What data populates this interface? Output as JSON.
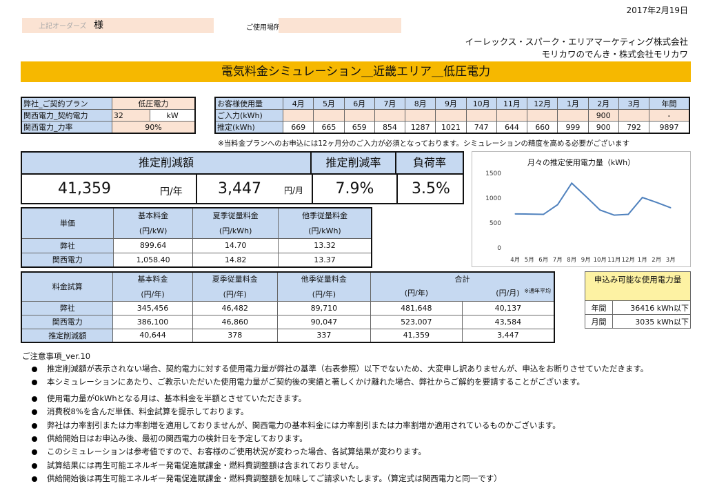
{
  "date": "2017年2月19日",
  "customer": {
    "name": "上記オーダーズ",
    "honorific": "様",
    "location_label": "ご使用場所",
    "location_value": ""
  },
  "company": {
    "line1": "イーレックス・スパーク・エリアマーケティング株式会社",
    "line2": "モリカワのでんき・株式会社モリカワ"
  },
  "title": "電気料金シミュレーション＿近畿エリア＿低圧電力",
  "plan": {
    "rows": [
      {
        "label": "弊社_ご契約プラン",
        "value": "低圧電力",
        "unit": ""
      },
      {
        "label": "関西電力_契約電力",
        "value": "32",
        "unit": "kW"
      },
      {
        "label": "関西電力_力率",
        "value": "90%",
        "unit": ""
      }
    ]
  },
  "usage": {
    "header_label": "お客様使用量",
    "months": [
      "4月",
      "5月",
      "6月",
      "7月",
      "8月",
      "9月",
      "10月",
      "11月",
      "12月",
      "1月",
      "2月",
      "3月",
      "年間"
    ],
    "input_label": "ご入力(kWh)",
    "input_values": [
      "",
      "",
      "",
      "",
      "",
      "",
      "",
      "",
      "",
      "",
      "900",
      "",
      "-"
    ],
    "est_label": "推定(kWh)",
    "est_values": [
      "669",
      "665",
      "659",
      "854",
      "1287",
      "1021",
      "747",
      "644",
      "660",
      "999",
      "900",
      "792",
      "9897"
    ],
    "note": "※当料金プランへのお申込には12ヶ月分のご入力が必須となっております。シミュレーションの精度を高める必要がございます"
  },
  "summary": {
    "reduction_label": "推定削減額",
    "yearly_value": "41,359",
    "yearly_unit": "円/年",
    "monthly_value": "3,447",
    "monthly_unit": "円/月",
    "rate_label": "推定削減率",
    "rate_value": "7.9%",
    "load_label": "負荷率",
    "load_value": "3.5%"
  },
  "unit_price": {
    "corner": "単価",
    "headers": [
      {
        "name": "基本料金",
        "unit": "(円/kW)"
      },
      {
        "name": "夏季従量料金",
        "unit": "(円/kWh)"
      },
      {
        "name": "他季従量料金",
        "unit": "(円/kWh)"
      }
    ],
    "rows": [
      {
        "label": "弊社",
        "values": [
          "899.64",
          "14.70",
          "13.32"
        ]
      },
      {
        "label": "関西電力",
        "values": [
          "1,058.40",
          "14.82",
          "13.37"
        ]
      }
    ]
  },
  "trial": {
    "corner": "料金試算",
    "headers": [
      {
        "name": "基本料金",
        "unit": "(円/年)"
      },
      {
        "name": "夏季従量料金",
        "unit": "(円/年)"
      },
      {
        "name": "他季従量料金",
        "unit": "(円/年)"
      }
    ],
    "total_label": "合計",
    "total_unit_year": "(円/年)",
    "total_unit_month": "(円/月)",
    "avg_note": "※通年平均",
    "rows": [
      {
        "label": "弊社",
        "values": [
          "345,456",
          "46,482",
          "89,710",
          "481,648",
          "40,137"
        ]
      },
      {
        "label": "関西電力",
        "values": [
          "386,100",
          "46,860",
          "90,047",
          "523,007",
          "43,584"
        ]
      },
      {
        "label": "推定削減額",
        "values": [
          "40,644",
          "378",
          "337",
          "41,359",
          "3,447"
        ]
      }
    ]
  },
  "limit": {
    "title": "申込み可能な使用電力量",
    "rows": [
      {
        "label": "年間",
        "value": "36416 kWh以下"
      },
      {
        "label": "月間",
        "value": "3035 kWh以下"
      }
    ]
  },
  "chart_data": {
    "type": "line",
    "title": "月々の推定使用電力量（kWh）",
    "categories": [
      "4月",
      "5月",
      "6月",
      "7月",
      "8月",
      "9月",
      "10月",
      "11月",
      "12月",
      "1月",
      "2月",
      "3月"
    ],
    "values": [
      669,
      665,
      659,
      854,
      1287,
      1021,
      747,
      644,
      660,
      999,
      900,
      792
    ],
    "yticks": [
      "0",
      "500",
      "1000",
      "1500"
    ],
    "ylim": [
      0,
      1500
    ],
    "grid": false,
    "line_color": "#4f81bd"
  },
  "notes": {
    "heading": "ご注意事項_ver.10",
    "items": [
      "推定削減額が表示されない場合、契約電力に対する使用電力量が弊社の基準（右表参照）以下でないため、大変申し訳ありませんが、申込をお断りさせていただきます。",
      "本シミュレーションにあたり、ご教示いただいた使用電力量がご契約後の実績と著しくかけ離れた場合、弊社からご解約を要請することがございます。",
      "使用電力量が0kWhとなる月は、基本料金を半額とさせていただきます。",
      "消費税8%を含んだ単価、料金試算を提示しております。",
      "弊社は力率割引または力率割増を適用しておりませんが、関西電力の基本料金には力率割引または力率割増か適用されているものかございます。",
      "供給開始日はお申込み後、最初の関西電力の検針日を予定しております。",
      "このシミュレーションは参考値ですので、お客様のご使用状況が変わった場合、各試算結果が変わります。",
      "試算結果には再生可能エネルギー発電促進賦課金・燃料費調整額は含まれておりません。",
      "供給開始後は再生可能エネルギー発電促進賦課金・燃料費調整額を加味してご請求いたします。（算定式は関西電力と同一です）"
    ]
  }
}
